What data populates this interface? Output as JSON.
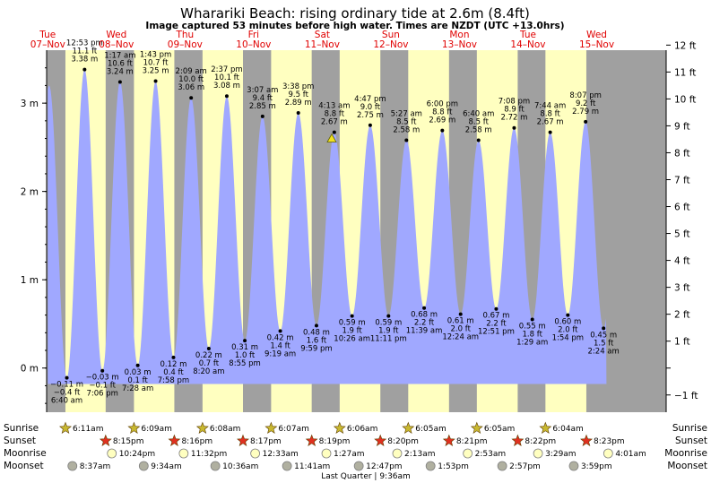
{
  "title": "Wharariki Beach: rising  ordinary tide at 2.6m (8.4ft)",
  "subtitle": "Image captured 53 minutes before high water. Times are NZDT (UTC +13.0hrs)",
  "days": [
    {
      "weekday": "Tue",
      "date": "07–Nov"
    },
    {
      "weekday": "Wed",
      "date": "08–Nov"
    },
    {
      "weekday": "Thu",
      "date": "09–Nov"
    },
    {
      "weekday": "Fri",
      "date": "10–Nov"
    },
    {
      "weekday": "Sat",
      "date": "11–Nov"
    },
    {
      "weekday": "Sun",
      "date": "12–Nov"
    },
    {
      "weekday": "Mon",
      "date": "13–Nov"
    },
    {
      "weekday": "Tue",
      "date": "14–Nov"
    },
    {
      "weekday": "Wed",
      "date": "15–Nov"
    }
  ],
  "row_labels": {
    "sunrise": "Sunrise",
    "sunset": "Sunset",
    "moonrise": "Moonrise",
    "moonset": "Moonset"
  },
  "sunrise": [
    "6:11am",
    "6:09am",
    "6:08am",
    "6:07am",
    "6:06am",
    "6:05am",
    "6:05am",
    "6:04am"
  ],
  "sunset": [
    "8:15pm",
    "8:16pm",
    "8:17pm",
    "8:19pm",
    "8:20pm",
    "8:21pm",
    "8:22pm",
    "8:23pm"
  ],
  "moonrise": [
    "10:24pm",
    "11:32pm",
    "12:33am",
    "1:27am",
    "2:13am",
    "2:53am",
    "3:29am",
    "4:01am"
  ],
  "moonset": [
    "8:37am",
    "9:34am",
    "10:36am",
    "11:41am",
    "12:47pm",
    "1:53pm",
    "2:57pm",
    "3:59pm"
  ],
  "moon_phase": "Last Quarter | 9:36am",
  "colors": {
    "day": "#ffffc0",
    "night": "#a0a0a0",
    "water": "#a0a8ff",
    "day_label": "#e00000",
    "sun": "#c8b830",
    "sunset_star": "#e03020",
    "moonrise": "#ffffc0",
    "moonset": "#b0b0a0"
  },
  "chart_data": {
    "type": "area",
    "title": "Wharariki Beach: rising  ordinary tide at 2.6m (8.4ft)",
    "y_left_label": "m",
    "y_left_ticks": [
      "0 m",
      "1 m",
      "2 m",
      "3 m"
    ],
    "y_left_values": [
      0,
      1,
      2,
      3
    ],
    "y_right_ticks": [
      "−1 ft",
      "1 ft",
      "2 ft",
      "3 ft",
      "4 ft",
      "5 ft",
      "6 ft",
      "7 ft",
      "8 ft",
      "9 ft",
      "10 ft",
      "11 ft",
      "12 ft"
    ],
    "y_right_values": [
      -1,
      1,
      2,
      3,
      4,
      5,
      6,
      7,
      8,
      9,
      10,
      11,
      12
    ],
    "ylim_m": [
      -0.5,
      3.6
    ],
    "x_unit": "hours from 00:00 Tue 07-Nov",
    "xlim_hours": [
      -0.4,
      216.3
    ],
    "day_start_hours": [
      0,
      24,
      48,
      72,
      96,
      120,
      144,
      168,
      192,
      216
    ],
    "daylight_hours": [
      [
        6.18,
        20.25
      ],
      [
        30.15,
        44.27
      ],
      [
        54.13,
        68.28
      ],
      [
        78.12,
        92.32
      ],
      [
        102.1,
        116.33
      ],
      [
        126.08,
        140.35
      ],
      [
        150.08,
        164.37
      ],
      [
        174.07,
        188.38
      ]
    ],
    "extremes": [
      {
        "type": "low",
        "time_h": 6.67,
        "time": "6:40 am",
        "m": "−0.11 m",
        "ft": "−0.4 ft",
        "value_m": -0.11
      },
      {
        "type": "high",
        "time_h": 12.88,
        "time": "12:53 pm",
        "m": "3.38 m",
        "ft": "11.1 ft",
        "value_m": 3.38
      },
      {
        "type": "low",
        "time_h": 19.1,
        "time": "7:06 pm",
        "m": "−0.03 m",
        "ft": "−0.1 ft",
        "value_m": -0.03
      },
      {
        "type": "high",
        "time_h": 25.28,
        "time": "1:17 am",
        "m": "3.24 m",
        "ft": "10.6 ft",
        "value_m": 3.24
      },
      {
        "type": "low",
        "time_h": 31.47,
        "time": "7:28 am",
        "m": "0.03 m",
        "ft": "0.1 ft",
        "value_m": 0.03
      },
      {
        "type": "high",
        "time_h": 37.72,
        "time": "1:43 pm",
        "m": "3.25 m",
        "ft": "10.7 ft",
        "value_m": 3.25
      },
      {
        "type": "low",
        "time_h": 43.97,
        "time": "7:58 pm",
        "m": "0.12 m",
        "ft": "0.4 ft",
        "value_m": 0.12
      },
      {
        "type": "high",
        "time_h": 50.15,
        "time": "2:09 am",
        "m": "3.06 m",
        "ft": "10.0 ft",
        "value_m": 3.06
      },
      {
        "type": "low",
        "time_h": 56.33,
        "time": "8:20 am",
        "m": "0.22 m",
        "ft": "0.7 ft",
        "value_m": 0.22
      },
      {
        "type": "high",
        "time_h": 62.62,
        "time": "2:37 pm",
        "m": "3.08 m",
        "ft": "10.1 ft",
        "value_m": 3.08
      },
      {
        "type": "low",
        "time_h": 68.92,
        "time": "8:55 pm",
        "m": "0.31 m",
        "ft": "1.0 ft",
        "value_m": 0.31
      },
      {
        "type": "high",
        "time_h": 75.12,
        "time": "3:07 am",
        "m": "2.85 m",
        "ft": "9.4 ft",
        "value_m": 2.85
      },
      {
        "type": "low",
        "time_h": 81.32,
        "time": "9:19 am",
        "m": "0.42 m",
        "ft": "1.4 ft",
        "value_m": 0.42
      },
      {
        "type": "high",
        "time_h": 87.63,
        "time": "3:38 pm",
        "m": "2.89 m",
        "ft": "9.5 ft",
        "value_m": 2.89
      },
      {
        "type": "low",
        "time_h": 93.98,
        "time": "9:59 pm",
        "m": "0.48 m",
        "ft": "1.6 ft",
        "value_m": 0.48
      },
      {
        "type": "high",
        "time_h": 100.22,
        "time": "4:13 am",
        "m": "2.67 m",
        "ft": "8.8 ft",
        "value_m": 2.67
      },
      {
        "type": "low",
        "time_h": 106.43,
        "time": "10:26 am",
        "m": "0.59 m",
        "ft": "1.9 ft",
        "value_m": 0.59
      },
      {
        "type": "high",
        "time_h": 112.78,
        "time": "4:47 pm",
        "m": "2.75 m",
        "ft": "9.0 ft",
        "value_m": 2.75
      },
      {
        "type": "low",
        "time_h": 119.18,
        "time": "11:11 pm",
        "m": "0.59 m",
        "ft": "1.9 ft",
        "value_m": 0.59
      },
      {
        "type": "high",
        "time_h": 125.45,
        "time": "5:27 am",
        "m": "2.58 m",
        "ft": "8.5 ft",
        "value_m": 2.58
      },
      {
        "type": "low",
        "time_h": 131.65,
        "time": "11:39 am",
        "m": "0.68 m",
        "ft": "2.2 ft",
        "value_m": 0.68
      },
      {
        "type": "high",
        "time_h": 138.0,
        "time": "6:00 pm",
        "m": "2.69 m",
        "ft": "8.8 ft",
        "value_m": 2.69
      },
      {
        "type": "low",
        "time_h": 144.4,
        "time": "12:24 am",
        "m": "0.61 m",
        "ft": "2.0 ft",
        "value_m": 0.61
      },
      {
        "type": "high",
        "time_h": 150.67,
        "time": "6:40 am",
        "m": "2.58 m",
        "ft": "8.5 ft",
        "value_m": 2.58
      },
      {
        "type": "low",
        "time_h": 156.85,
        "time": "12:51 pm",
        "m": "0.67 m",
        "ft": "2.2 ft",
        "value_m": 0.67
      },
      {
        "type": "high",
        "time_h": 163.13,
        "time": "7:08 pm",
        "m": "2.72 m",
        "ft": "8.9 ft",
        "value_m": 2.72
      },
      {
        "type": "low",
        "time_h": 169.48,
        "time": "1:29 am",
        "m": "0.55 m",
        "ft": "1.8 ft",
        "value_m": 0.55
      },
      {
        "type": "high",
        "time_h": 175.73,
        "time": "7:44 am",
        "m": "2.67 m",
        "ft": "8.8 ft",
        "value_m": 2.67
      },
      {
        "type": "low",
        "time_h": 181.9,
        "time": "1:54 pm",
        "m": "0.60 m",
        "ft": "2.0 ft",
        "value_m": 0.6
      },
      {
        "type": "high",
        "time_h": 188.12,
        "time": "8:07 pm",
        "m": "2.79 m",
        "ft": "9.2 ft",
        "value_m": 2.79
      },
      {
        "type": "low",
        "time_h": 194.4,
        "time": "2:24 am",
        "m": "0.45 m",
        "ft": "1.5 ft",
        "value_m": 0.45
      }
    ],
    "current": {
      "time_h": 99.33,
      "value_m": 2.6
    }
  }
}
